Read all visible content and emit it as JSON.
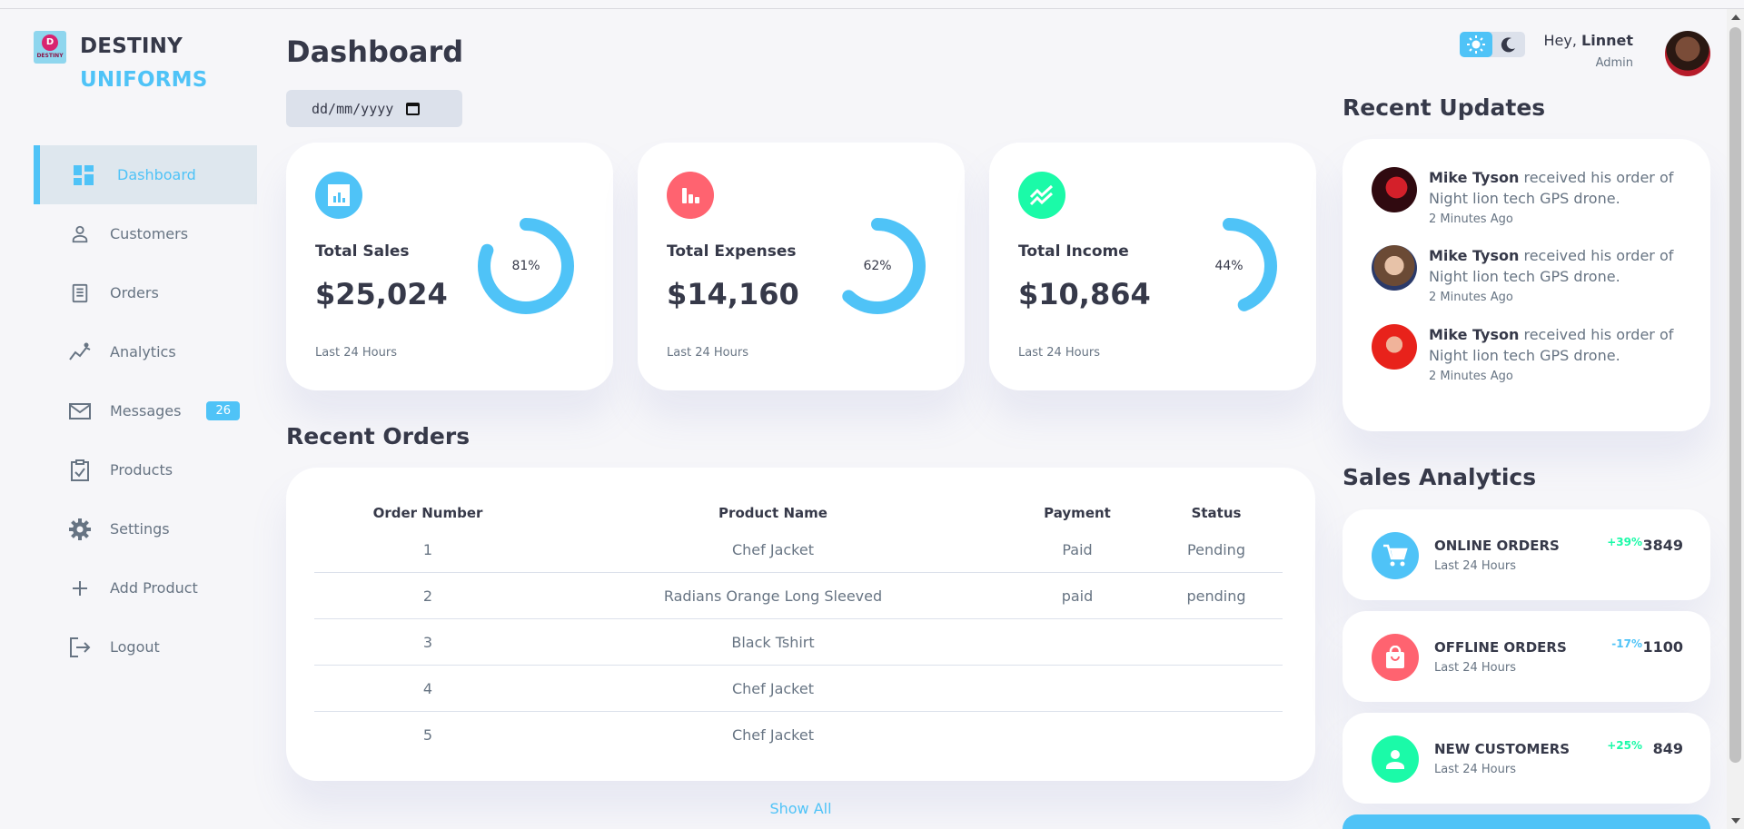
{
  "brand": {
    "name_line1": "DESTINY",
    "name_line2": "UNIFORMS",
    "logo_letter": "D",
    "logo_text": "DESTINY"
  },
  "sidebar": {
    "items": [
      {
        "label": "Dashboard",
        "icon": "grid-icon",
        "active": true
      },
      {
        "label": "Customers",
        "icon": "person-icon"
      },
      {
        "label": "Orders",
        "icon": "receipt-icon"
      },
      {
        "label": "Analytics",
        "icon": "insights-icon"
      },
      {
        "label": "Messages",
        "icon": "mail-icon",
        "badge": "26"
      },
      {
        "label": "Products",
        "icon": "clipboard-check-icon"
      },
      {
        "label": "Settings",
        "icon": "gear-icon"
      },
      {
        "label": "Add Product",
        "icon": "plus-icon"
      },
      {
        "label": "Logout",
        "icon": "logout-icon"
      }
    ]
  },
  "main": {
    "title": "Dashboard",
    "date_placeholder": "dd/mm/yyyy",
    "cards": [
      {
        "title": "Total Sales",
        "value": "$25,024",
        "percent_label": "81%",
        "percent": 81,
        "subtitle": "Last 24 Hours",
        "icon": "analytics-icon",
        "color": "#4fc3f7"
      },
      {
        "title": "Total Expenses",
        "value": "$14,160",
        "percent_label": "62%",
        "percent": 62,
        "subtitle": "Last 24 Hours",
        "icon": "bar-chart-icon",
        "color": "#ff6370"
      },
      {
        "title": "Total Income",
        "value": "$10,864",
        "percent_label": "44%",
        "percent": 44,
        "subtitle": "Last 24 Hours",
        "icon": "stacked-line-chart-icon",
        "color": "#1bfaa8"
      }
    ],
    "recent_orders": {
      "title": "Recent Orders",
      "headers": [
        "Order Number",
        "Product Name",
        "Payment",
        "Status"
      ],
      "rows": [
        [
          "1",
          "Chef Jacket",
          "Paid",
          "Pending"
        ],
        [
          "2",
          "Radians Orange Long Sleeved",
          "paid",
          "pending"
        ],
        [
          "3",
          "Black Tshirt",
          "",
          ""
        ],
        [
          "4",
          "Chef Jacket",
          "",
          ""
        ],
        [
          "5",
          "Chef Jacket",
          "",
          ""
        ]
      ],
      "show_all": "Show All"
    }
  },
  "right": {
    "greeting_prefix": "Hey, ",
    "user_name": "Linnet",
    "role": "Admin",
    "recent_updates": {
      "title": "Recent Updates",
      "items": [
        {
          "name": "Mike Tyson",
          "text": " received his order of Night lion tech GPS drone.",
          "time": "2 Minutes Ago"
        },
        {
          "name": "Mike Tyson",
          "text": " received his order of Night lion tech GPS drone.",
          "time": "2 Minutes Ago"
        },
        {
          "name": "Mike Tyson",
          "text": " received his order of Night lion tech GPS drone.",
          "time": "2 Minutes Ago"
        }
      ]
    },
    "sales_analytics": {
      "title": "Sales Analytics",
      "items": [
        {
          "title": "ONLINE ORDERS",
          "subtitle": "Last 24 Hours",
          "change": "+39%",
          "value": "3849",
          "icon": "cart-icon",
          "color": "#4fc3f7",
          "change_color": "#1bfaa8"
        },
        {
          "title": "OFFLINE ORDERS",
          "subtitle": "Last 24 Hours",
          "change": "-17%",
          "value": "1100",
          "icon": "shopping-bag-icon",
          "color": "#ff6370",
          "change_color": "#4fc3f7"
        },
        {
          "title": "NEW CUSTOMERS",
          "subtitle": "Last 24 Hours",
          "change": "+25%",
          "value": "849",
          "icon": "person-icon",
          "color": "#1bfaa8",
          "change_color": "#1bfaa8"
        }
      ]
    }
  }
}
